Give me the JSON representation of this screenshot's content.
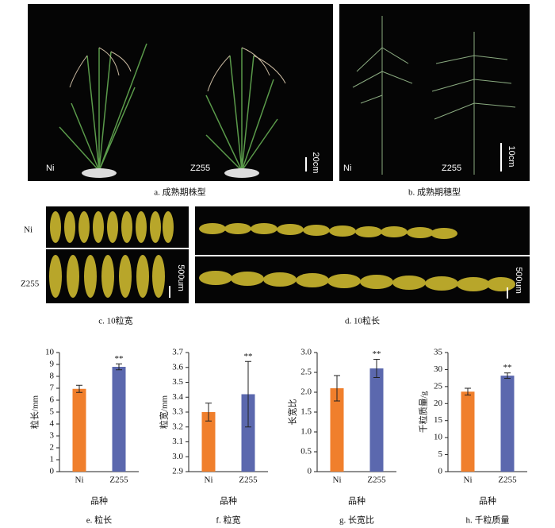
{
  "photos": [
    {
      "caption": "a. 成熟期株型",
      "labels": [
        "Ni",
        "Z255"
      ],
      "scale": "20cm"
    },
    {
      "caption": "b. 成熟期穗型",
      "labels": [
        "Ni",
        "Z255"
      ],
      "scale": "10cm"
    },
    {
      "caption": "c. 10粒宽",
      "labels": [
        "Ni",
        "Z255"
      ],
      "scale": "500um"
    },
    {
      "caption": "d. 10粒长",
      "scale": "500um"
    }
  ],
  "chart_data": [
    {
      "type": "bar",
      "ylabel": "粒长/mm",
      "xlabel": "品种",
      "caption": "e. 粒长",
      "categories": [
        "Ni",
        "Z255"
      ],
      "values": [
        6.95,
        8.8
      ],
      "errors": [
        0.3,
        0.25
      ],
      "colors": [
        "#f07f2c",
        "#5b68ae"
      ],
      "annotation": "**",
      "ylim": [
        0,
        10
      ],
      "yticks": [
        0,
        1,
        2,
        3,
        4,
        5,
        6,
        7,
        8,
        9,
        10
      ]
    },
    {
      "type": "bar",
      "ylabel": "粒宽/mm",
      "xlabel": "品种",
      "caption": "f. 粒宽",
      "categories": [
        "Ni",
        "Z255"
      ],
      "values": [
        3.3,
        3.42
      ],
      "errors": [
        0.06,
        0.22
      ],
      "colors": [
        "#f07f2c",
        "#5b68ae"
      ],
      "annotation": "**",
      "ylim": [
        2.9,
        3.7
      ],
      "yticks": [
        2.9,
        {
          "value": 3,
          "label": "3.0"
        },
        3.1,
        3.2,
        3.3,
        3.4,
        3.5,
        3.6,
        3.7
      ]
    },
    {
      "type": "bar",
      "ylabel": "长宽比",
      "xlabel": "品种",
      "caption": "g. 长宽比",
      "categories": [
        "Ni",
        "Z255"
      ],
      "values": [
        2.1,
        2.6
      ],
      "errors": [
        0.32,
        0.23
      ],
      "colors": [
        "#f07f2c",
        "#5b68ae"
      ],
      "annotation": "**",
      "ylim": [
        0,
        3
      ],
      "yticks": [
        0,
        0.5,
        {
          "value": 1,
          "label": "1.0"
        },
        1.5,
        {
          "value": 2,
          "label": "2.0"
        },
        2.5,
        {
          "value": 3,
          "label": "3.0"
        }
      ]
    },
    {
      "type": "bar",
      "ylabel": "千粒质量/g",
      "xlabel": "品种",
      "caption": "h. 千粒质量",
      "categories": [
        "Ni",
        "Z255"
      ],
      "values": [
        23.5,
        28.2
      ],
      "errors": [
        1.0,
        0.8
      ],
      "colors": [
        "#f07f2c",
        "#5b68ae"
      ],
      "annotation": "**",
      "ylim": [
        0,
        35
      ],
      "yticks": [
        0,
        5,
        10,
        15,
        20,
        25,
        30,
        35
      ]
    }
  ]
}
